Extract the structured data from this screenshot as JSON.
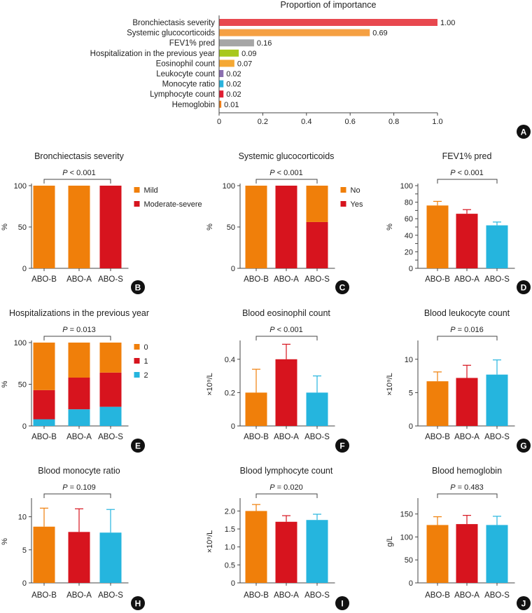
{
  "chart_data": [
    {
      "id": "A",
      "type": "bar",
      "orientation": "horizontal",
      "title": "Proportion of importance",
      "categories": [
        "Bronchiectasis severity",
        "Systemic glucocorticoids",
        "FEV1% pred",
        "Hospitalization in the previous year",
        "Eosinophil count",
        "Leukocyte count",
        "Monocyte ratio",
        "Lymphocyte count",
        "Hemoglobin"
      ],
      "values": [
        1.0,
        0.69,
        0.16,
        0.09,
        0.07,
        0.02,
        0.02,
        0.02,
        0.01
      ],
      "value_labels": [
        "1.00",
        "0.69",
        "0.16",
        "0.09",
        "0.07",
        "0.02",
        "0.02",
        "0.02",
        "0.01"
      ],
      "colors": [
        "#e8484f",
        "#f5a043",
        "#a6a6a6",
        "#a8c81e",
        "#f5a833",
        "#8b6fb0",
        "#2ab3dd",
        "#e01e32",
        "#ef7e18"
      ],
      "xlim": [
        0,
        1.0
      ],
      "xticks": [
        0,
        0.2,
        0.4,
        0.6,
        0.8,
        1.0
      ],
      "xtick_labels": [
        "0",
        "0.2",
        "0.4",
        "0.6",
        "0.8",
        "1.0"
      ]
    },
    {
      "id": "B",
      "type": "stacked-bar",
      "title": "Bronchiectasis severity",
      "p": "< 0.001",
      "ylabel": "%",
      "ylim": [
        0,
        100
      ],
      "yticks": [
        0,
        50,
        100
      ],
      "ytick_labels": [
        "0",
        "50",
        "100"
      ],
      "categories": [
        "ABO-B",
        "ABO-A",
        "ABO-S"
      ],
      "series": [
        {
          "name": "Moderate-severe",
          "color": "#d7141e",
          "values": [
            0,
            0,
            100
          ]
        },
        {
          "name": "Mild",
          "color": "#f07f0a",
          "values": [
            100,
            100,
            0
          ]
        }
      ],
      "legend": [
        "Mild",
        "Moderate-severe"
      ]
    },
    {
      "id": "C",
      "type": "stacked-bar",
      "title": "Systemic glucocorticoids",
      "p": "< 0.001",
      "ylabel": "%",
      "ylim": [
        0,
        100
      ],
      "yticks": [
        0,
        50,
        100
      ],
      "ytick_labels": [
        "0",
        "50",
        "100"
      ],
      "categories": [
        "ABO-B",
        "ABO-A",
        "ABO-S"
      ],
      "series": [
        {
          "name": "Yes",
          "color": "#d7141e",
          "values": [
            0,
            100,
            56
          ]
        },
        {
          "name": "No",
          "color": "#f07f0a",
          "values": [
            100,
            0,
            44
          ]
        }
      ],
      "legend": [
        "No",
        "Yes"
      ]
    },
    {
      "id": "D",
      "type": "bar",
      "title": "FEV1% pred",
      "p": "< 0.001",
      "ylabel": "%",
      "ylim": [
        0,
        100
      ],
      "yticks": [
        0,
        10,
        20,
        30,
        40,
        50,
        60,
        70,
        80,
        90,
        100
      ],
      "ytick_labels": [
        "0",
        "",
        "20",
        "",
        "40",
        "",
        "60",
        "",
        "80",
        "",
        "100"
      ],
      "categories": [
        "ABO-B",
        "ABO-A",
        "ABO-S"
      ],
      "values": [
        76,
        66,
        52
      ],
      "errors": [
        5,
        5,
        4
      ],
      "colors": [
        "#f07f0a",
        "#d7141e",
        "#25b5de"
      ]
    },
    {
      "id": "E",
      "type": "stacked-bar",
      "title": "Hospitalizations in the previous year",
      "p": "= 0.013",
      "ylabel": "%",
      "ylim": [
        0,
        100
      ],
      "yticks": [
        0,
        50,
        100
      ],
      "ytick_labels": [
        "0",
        "50",
        "100"
      ],
      "categories": [
        "ABO-B",
        "ABO-A",
        "ABO-S"
      ],
      "series": [
        {
          "name": "2",
          "color": "#25b5de",
          "values": [
            8,
            20,
            23
          ]
        },
        {
          "name": "1",
          "color": "#d7141e",
          "values": [
            35,
            38,
            41
          ]
        },
        {
          "name": "0",
          "color": "#f07f0a",
          "values": [
            57,
            42,
            36
          ]
        }
      ],
      "legend": [
        "0",
        "1",
        "2"
      ]
    },
    {
      "id": "F",
      "type": "bar",
      "title": "Blood eosinophil count",
      "p": "< 0.001",
      "ylabel": "×10⁹/L",
      "ylim": [
        0,
        0.5
      ],
      "yticks": [
        0,
        0.2,
        0.4
      ],
      "ytick_labels": [
        "0",
        "0.2",
        "0.4"
      ],
      "categories": [
        "ABO-B",
        "ABO-A",
        "ABO-S"
      ],
      "values": [
        0.2,
        0.4,
        0.2
      ],
      "errors": [
        0.14,
        0.09,
        0.1
      ],
      "colors": [
        "#f07f0a",
        "#d7141e",
        "#25b5de"
      ]
    },
    {
      "id": "G",
      "type": "bar",
      "title": "Blood leukocyte count",
      "p": "= 0.016",
      "ylabel": "×10⁹/L",
      "ylim": [
        0,
        12.5
      ],
      "yticks": [
        0,
        5,
        10
      ],
      "ytick_labels": [
        "0",
        "5",
        "10"
      ],
      "categories": [
        "ABO-B",
        "ABO-A",
        "ABO-S"
      ],
      "values": [
        6.7,
        7.2,
        7.7
      ],
      "errors": [
        1.4,
        1.9,
        2.2
      ],
      "colors": [
        "#f07f0a",
        "#d7141e",
        "#25b5de"
      ]
    },
    {
      "id": "H",
      "type": "bar",
      "title": "Blood monocyte ratio",
      "p": "= 0.109",
      "ylabel": "%",
      "ylim": [
        0,
        12.5
      ],
      "yticks": [
        0,
        5,
        10
      ],
      "ytick_labels": [
        "0",
        "5",
        "10"
      ],
      "categories": [
        "ABO-B",
        "ABO-A",
        "ABO-S"
      ],
      "values": [
        8.5,
        7.7,
        7.6
      ],
      "errors": [
        2.8,
        3.5,
        3.5
      ],
      "colors": [
        "#f07f0a",
        "#d7141e",
        "#25b5de"
      ]
    },
    {
      "id": "I",
      "type": "bar",
      "title": "Blood lymphocyte count",
      "p": "= 0.020",
      "ylabel": "×10⁹/L",
      "ylim": [
        0,
        2.3
      ],
      "yticks": [
        0,
        0.5,
        1.0,
        1.5,
        2.0
      ],
      "ytick_labels": [
        "0",
        "0.5",
        "1.0",
        "1.5",
        "2.0"
      ],
      "categories": [
        "ABO-B",
        "ABO-A",
        "ABO-S"
      ],
      "values": [
        2.0,
        1.7,
        1.75
      ],
      "errors": [
        0.18,
        0.17,
        0.16
      ],
      "colors": [
        "#f07f0a",
        "#d7141e",
        "#25b5de"
      ]
    },
    {
      "id": "J",
      "type": "bar",
      "title": "Blood hemoglobin",
      "p": "= 0.483",
      "ylabel": "g/L",
      "ylim": [
        0,
        180
      ],
      "yticks": [
        0,
        50,
        100,
        150
      ],
      "ytick_labels": [
        "0",
        "50",
        "100",
        "150"
      ],
      "categories": [
        "ABO-B",
        "ABO-A",
        "ABO-S"
      ],
      "values": [
        126,
        128,
        126
      ],
      "errors": [
        18,
        19,
        19
      ],
      "colors": [
        "#f07f0a",
        "#d7141e",
        "#25b5de"
      ]
    }
  ]
}
